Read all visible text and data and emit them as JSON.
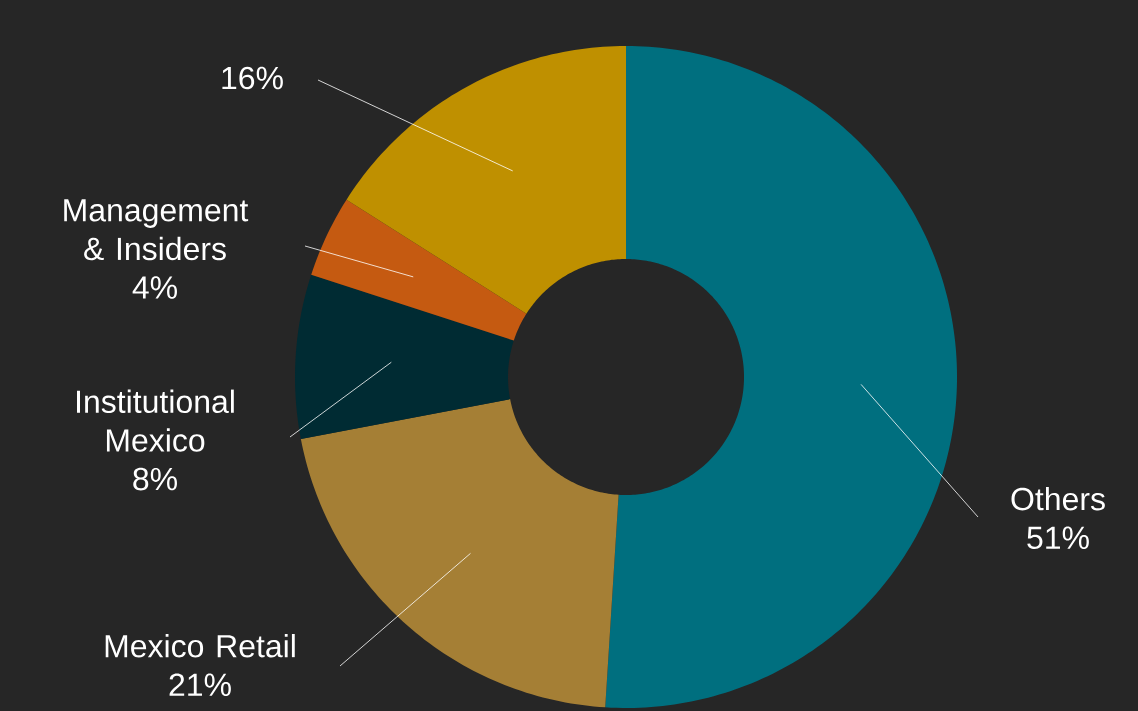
{
  "chart_data": {
    "type": "donut",
    "categories": [
      "Others",
      "Mexico Retail",
      "Institutional Mexico",
      "Management & Insiders",
      null
    ],
    "values": [
      51,
      21,
      8,
      4,
      16
    ],
    "colors": [
      "#006f7f",
      "#a57f35",
      "#002b33",
      "#c55a11",
      "#bf9000"
    ],
    "value_labels": [
      "51%",
      "21%",
      "8%",
      "4%",
      "16%"
    ]
  }
}
